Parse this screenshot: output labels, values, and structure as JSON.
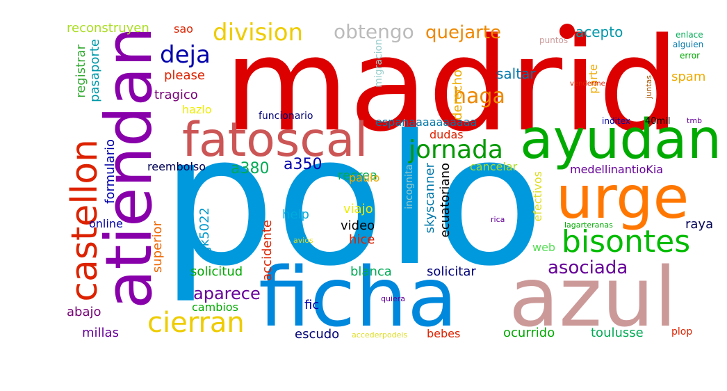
{
  "word_cloud": {
    "words": [
      {
        "text": "madrid",
        "color": "#dd0000"
      },
      {
        "text": "polo",
        "color": "#0099dd"
      },
      {
        "text": "atiendan",
        "color": "#8800aa"
      },
      {
        "text": "ficha",
        "color": "#0088dd"
      },
      {
        "text": "azul",
        "color": "#cc9999"
      },
      {
        "text": "ayudan",
        "color": "#00aa00"
      },
      {
        "text": "urge",
        "color": "#ff7700"
      },
      {
        "text": "fatoscal",
        "color": "#cc5555"
      },
      {
        "text": "castellon",
        "color": "#dd2200"
      },
      {
        "text": "bisontes",
        "color": "#00bb00"
      },
      {
        "text": "cierran",
        "color": "#eecc00"
      },
      {
        "text": "jornada",
        "color": "#009900"
      },
      {
        "text": "division",
        "color": "#eecc00"
      },
      {
        "text": "deja",
        "color": "#0000aa"
      },
      {
        "text": "obtengo",
        "color": "#bbbbbb"
      },
      {
        "text": "quejarte",
        "color": "#ee8800"
      },
      {
        "text": "haga",
        "color": "#ee8800"
      },
      {
        "text": "asociada",
        "color": "#660099"
      },
      {
        "text": "aparece",
        "color": "#660099"
      },
      {
        "text": "a380",
        "color": "#00aa55"
      },
      {
        "text": "a350",
        "color": "#0000aa"
      },
      {
        "text": "reconstruyen",
        "color": "#aadd22"
      },
      {
        "text": "sao",
        "color": "#dd2200"
      },
      {
        "text": "acepto",
        "color": "#0099aa"
      },
      {
        "text": "saltar",
        "color": "#0077aa"
      },
      {
        "text": "spam",
        "color": "#eeaa00"
      },
      {
        "text": "please",
        "color": "#dd2200"
      },
      {
        "text": "tragico",
        "color": "#770077"
      },
      {
        "text": "hazlo",
        "color": "#eeee00"
      },
      {
        "text": "registrar",
        "color": "#33aa33"
      },
      {
        "text": "pasaporte",
        "color": "#0099aa"
      },
      {
        "text": "formulario",
        "color": "#0000aa"
      },
      {
        "text": "online",
        "color": "#0000aa"
      },
      {
        "text": "superior",
        "color": "#ee6600"
      },
      {
        "text": "jk5022",
        "color": "#0099cc"
      },
      {
        "text": "accidente",
        "color": "#dd2200"
      },
      {
        "text": "help",
        "color": "#00aadd"
      },
      {
        "text": "viajo",
        "color": "#eeee00"
      },
      {
        "text": "video",
        "color": "#000000"
      },
      {
        "text": "hice",
        "color": "#dd2200"
      },
      {
        "text": "recrea",
        "color": "#00aa55"
      },
      {
        "text": "paulo",
        "color": "#eeaa00"
      },
      {
        "text": "reembolso",
        "color": "#000055"
      },
      {
        "text": "espanaaaaaaaaaa",
        "color": "#0077aa"
      },
      {
        "text": "dudas",
        "color": "#dd2200"
      },
      {
        "text": "derecho",
        "color": "#eeaa00"
      },
      {
        "text": "funcionario",
        "color": "#000077"
      },
      {
        "text": "migracion",
        "color": "#99cccc"
      },
      {
        "text": "skyscanner",
        "color": "#0077aa"
      },
      {
        "text": "ecuatoriano",
        "color": "#000000"
      },
      {
        "text": "incognita",
        "color": "#99cccc"
      },
      {
        "text": "cancelar",
        "color": "#aadd22"
      },
      {
        "text": "medellinantioKia",
        "color": "#660099"
      },
      {
        "text": "parte",
        "color": "#eeaa00"
      },
      {
        "text": "efectivos",
        "color": "#dddd22"
      },
      {
        "text": "raya",
        "color": "#000055"
      },
      {
        "text": "web",
        "color": "#55dd55"
      },
      {
        "text": "solicitud",
        "color": "#00aa00"
      },
      {
        "text": "blanca",
        "color": "#00aa55"
      },
      {
        "text": "solicitar",
        "color": "#000077"
      },
      {
        "text": "cambios",
        "color": "#00aa00"
      },
      {
        "text": "fic",
        "color": "#0000aa"
      },
      {
        "text": "abajo",
        "color": "#770077"
      },
      {
        "text": "millas",
        "color": "#660099"
      },
      {
        "text": "escudo",
        "color": "#000077"
      },
      {
        "text": "bebes",
        "color": "#dd2200"
      },
      {
        "text": "ocurrido",
        "color": "#00aa00"
      },
      {
        "text": "toulusse",
        "color": "#00aa55"
      },
      {
        "text": "plop",
        "color": "#dd2200"
      },
      {
        "text": "puntos",
        "color": "#cc9999"
      },
      {
        "text": "venderme",
        "color": "#dd2200"
      },
      {
        "text": "juntas",
        "color": "#aa5500"
      },
      {
        "text": "enlace",
        "color": "#00aa55"
      },
      {
        "text": "alguien",
        "color": "#0077aa"
      },
      {
        "text": "error",
        "color": "#00aa00"
      },
      {
        "text": "inditex",
        "color": "#0000aa"
      },
      {
        "text": "40mil",
        "color": "#000000"
      },
      {
        "text": "tmb",
        "color": "#660099"
      },
      {
        "text": "rica",
        "color": "#660099"
      },
      {
        "text": "lagarteranas",
        "color": "#00aa00"
      },
      {
        "text": "avios",
        "color": "#dddd22"
      },
      {
        "text": "quiera",
        "color": "#660099"
      },
      {
        "text": "accederpodeis",
        "color": "#dddd22"
      }
    ]
  }
}
